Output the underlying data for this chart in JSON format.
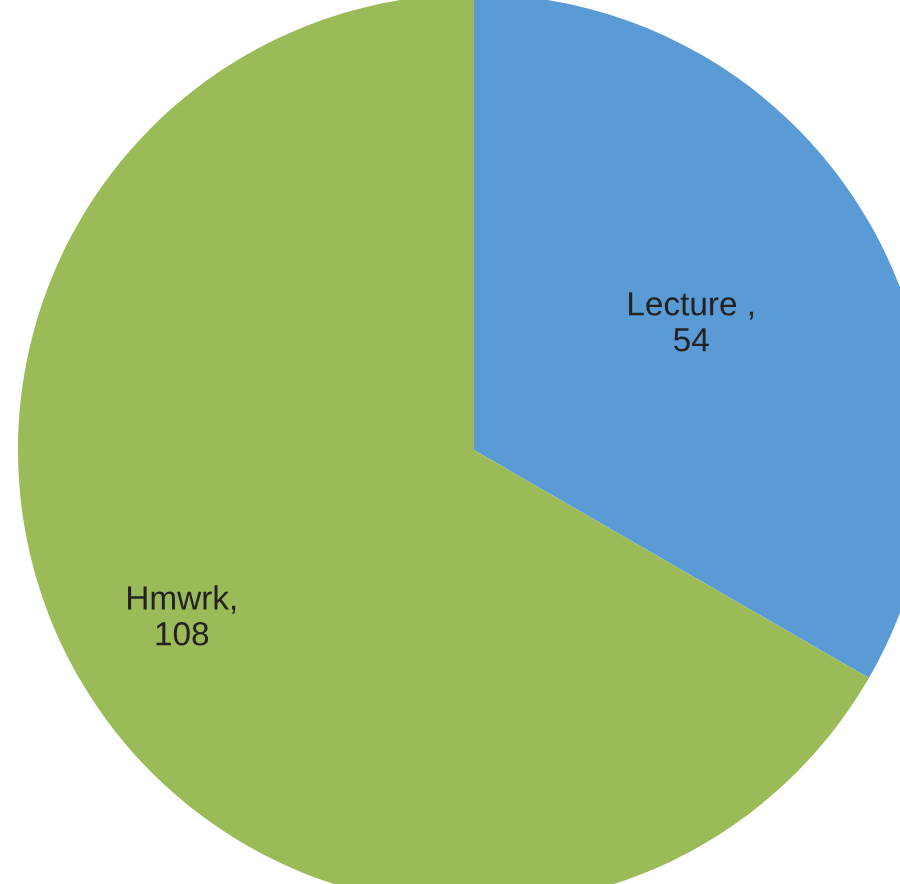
{
  "chart_data": {
    "type": "pie",
    "categories": [
      "Lecture",
      "Hmwrk"
    ],
    "values": [
      54,
      108
    ],
    "colors": [
      "#5b9bd5",
      "#9bbb59"
    ],
    "value_labels": [
      " , 54",
      ", 108"
    ],
    "legend": false
  }
}
